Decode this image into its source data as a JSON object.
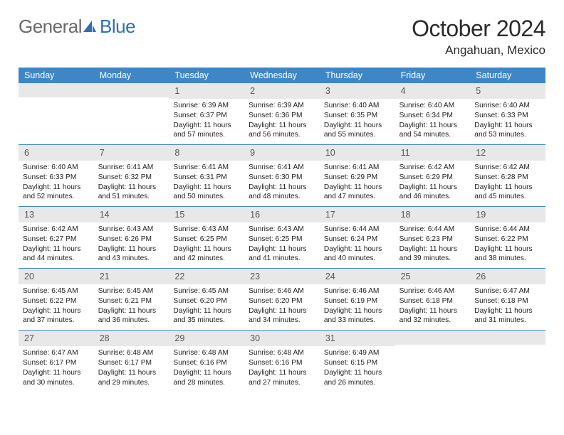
{
  "brand": {
    "word1": "General",
    "word2": "Blue",
    "color1": "#6a6a6a",
    "color2": "#2f6fb0",
    "icon_color": "#2f6fb0"
  },
  "title": "October 2024",
  "location": "Angahuan, Mexico",
  "calendar": {
    "header_bg": "#3f86c6",
    "header_fg": "#ffffff",
    "daynum_bg": "#e8e8e8",
    "daynum_fg": "#555555",
    "text_color": "#222222",
    "divider_color": "#3f86c6",
    "days_of_week": [
      "Sunday",
      "Monday",
      "Tuesday",
      "Wednesday",
      "Thursday",
      "Friday",
      "Saturday"
    ],
    "weeks": [
      [
        null,
        null,
        {
          "n": "1",
          "sunrise": "6:39 AM",
          "sunset": "6:37 PM",
          "daylight": "11 hours and 57 minutes."
        },
        {
          "n": "2",
          "sunrise": "6:39 AM",
          "sunset": "6:36 PM",
          "daylight": "11 hours and 56 minutes."
        },
        {
          "n": "3",
          "sunrise": "6:40 AM",
          "sunset": "6:35 PM",
          "daylight": "11 hours and 55 minutes."
        },
        {
          "n": "4",
          "sunrise": "6:40 AM",
          "sunset": "6:34 PM",
          "daylight": "11 hours and 54 minutes."
        },
        {
          "n": "5",
          "sunrise": "6:40 AM",
          "sunset": "6:33 PM",
          "daylight": "11 hours and 53 minutes."
        }
      ],
      [
        {
          "n": "6",
          "sunrise": "6:40 AM",
          "sunset": "6:33 PM",
          "daylight": "11 hours and 52 minutes."
        },
        {
          "n": "7",
          "sunrise": "6:41 AM",
          "sunset": "6:32 PM",
          "daylight": "11 hours and 51 minutes."
        },
        {
          "n": "8",
          "sunrise": "6:41 AM",
          "sunset": "6:31 PM",
          "daylight": "11 hours and 50 minutes."
        },
        {
          "n": "9",
          "sunrise": "6:41 AM",
          "sunset": "6:30 PM",
          "daylight": "11 hours and 48 minutes."
        },
        {
          "n": "10",
          "sunrise": "6:41 AM",
          "sunset": "6:29 PM",
          "daylight": "11 hours and 47 minutes."
        },
        {
          "n": "11",
          "sunrise": "6:42 AM",
          "sunset": "6:29 PM",
          "daylight": "11 hours and 46 minutes."
        },
        {
          "n": "12",
          "sunrise": "6:42 AM",
          "sunset": "6:28 PM",
          "daylight": "11 hours and 45 minutes."
        }
      ],
      [
        {
          "n": "13",
          "sunrise": "6:42 AM",
          "sunset": "6:27 PM",
          "daylight": "11 hours and 44 minutes."
        },
        {
          "n": "14",
          "sunrise": "6:43 AM",
          "sunset": "6:26 PM",
          "daylight": "11 hours and 43 minutes."
        },
        {
          "n": "15",
          "sunrise": "6:43 AM",
          "sunset": "6:25 PM",
          "daylight": "11 hours and 42 minutes."
        },
        {
          "n": "16",
          "sunrise": "6:43 AM",
          "sunset": "6:25 PM",
          "daylight": "11 hours and 41 minutes."
        },
        {
          "n": "17",
          "sunrise": "6:44 AM",
          "sunset": "6:24 PM",
          "daylight": "11 hours and 40 minutes."
        },
        {
          "n": "18",
          "sunrise": "6:44 AM",
          "sunset": "6:23 PM",
          "daylight": "11 hours and 39 minutes."
        },
        {
          "n": "19",
          "sunrise": "6:44 AM",
          "sunset": "6:22 PM",
          "daylight": "11 hours and 38 minutes."
        }
      ],
      [
        {
          "n": "20",
          "sunrise": "6:45 AM",
          "sunset": "6:22 PM",
          "daylight": "11 hours and 37 minutes."
        },
        {
          "n": "21",
          "sunrise": "6:45 AM",
          "sunset": "6:21 PM",
          "daylight": "11 hours and 36 minutes."
        },
        {
          "n": "22",
          "sunrise": "6:45 AM",
          "sunset": "6:20 PM",
          "daylight": "11 hours and 35 minutes."
        },
        {
          "n": "23",
          "sunrise": "6:46 AM",
          "sunset": "6:20 PM",
          "daylight": "11 hours and 34 minutes."
        },
        {
          "n": "24",
          "sunrise": "6:46 AM",
          "sunset": "6:19 PM",
          "daylight": "11 hours and 33 minutes."
        },
        {
          "n": "25",
          "sunrise": "6:46 AM",
          "sunset": "6:18 PM",
          "daylight": "11 hours and 32 minutes."
        },
        {
          "n": "26",
          "sunrise": "6:47 AM",
          "sunset": "6:18 PM",
          "daylight": "11 hours and 31 minutes."
        }
      ],
      [
        {
          "n": "27",
          "sunrise": "6:47 AM",
          "sunset": "6:17 PM",
          "daylight": "11 hours and 30 minutes."
        },
        {
          "n": "28",
          "sunrise": "6:48 AM",
          "sunset": "6:17 PM",
          "daylight": "11 hours and 29 minutes."
        },
        {
          "n": "29",
          "sunrise": "6:48 AM",
          "sunset": "6:16 PM",
          "daylight": "11 hours and 28 minutes."
        },
        {
          "n": "30",
          "sunrise": "6:48 AM",
          "sunset": "6:16 PM",
          "daylight": "11 hours and 27 minutes."
        },
        {
          "n": "31",
          "sunrise": "6:49 AM",
          "sunset": "6:15 PM",
          "daylight": "11 hours and 26 minutes."
        },
        null,
        null
      ]
    ]
  }
}
